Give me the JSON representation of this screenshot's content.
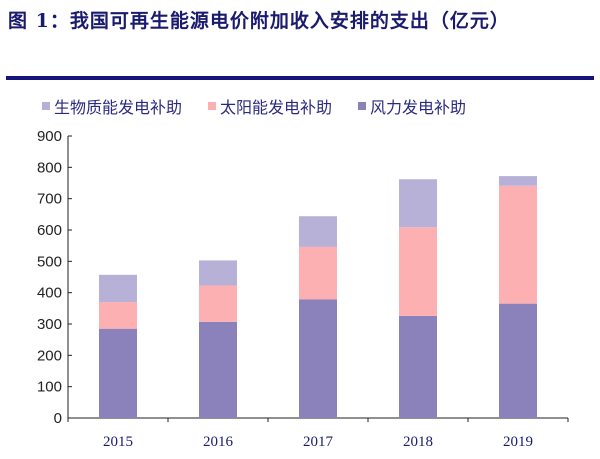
{
  "chart_data": {
    "type": "bar",
    "stacked": true,
    "title": "图 1：我国可再生能源电价附加收入安排的支出（亿元）",
    "categories": [
      "2015",
      "2016",
      "2017",
      "2018",
      "2019"
    ],
    "series": [
      {
        "name": "风力发电补助",
        "color": "#8b82bb",
        "values": [
          285,
          307,
          379,
          326,
          365
        ]
      },
      {
        "name": "太阳能发电补助",
        "color": "#fdb0b2",
        "values": [
          85,
          116,
          167,
          283,
          376
        ]
      },
      {
        "name": "生物质能发电补助",
        "color": "#b7b1d8",
        "values": [
          87,
          80,
          98,
          153,
          31
        ]
      }
    ],
    "legend_order": [
      "生物质能发电补助",
      "太阳能发电补助",
      "风力发电补助"
    ],
    "ylim": [
      0,
      900
    ],
    "yticks": [
      "0",
      "100",
      "200",
      "300",
      "400",
      "500",
      "600",
      "700",
      "800",
      "900"
    ],
    "xlabel": "",
    "ylabel": "",
    "legend_position": "top"
  }
}
